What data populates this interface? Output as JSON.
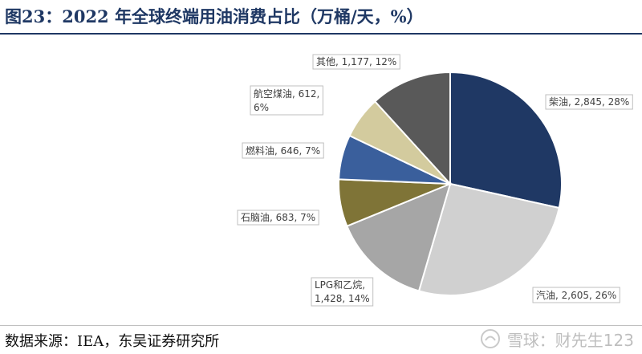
{
  "title": "图23：2022 年全球终端用油消费占比（万桶/天，%）",
  "source": "数据来源：IEA，东吴证券研究所",
  "watermark": {
    "text": "雪球：财先生123",
    "icon": "snowball-icon"
  },
  "chart_data": {
    "type": "pie",
    "title": "图23：2022 年全球终端用油消费占比（万桶/天，%）",
    "slices": [
      {
        "name": "柴油",
        "value": 2845,
        "percent": 28,
        "color": "#1f3864",
        "label_lines": [
          "柴油, 2,845, 28%"
        ]
      },
      {
        "name": "汽油",
        "value": 2605,
        "percent": 26,
        "color": "#d0d0d0",
        "label_lines": [
          "汽油, 2,605, 26%"
        ]
      },
      {
        "name": "LPG和乙烷",
        "value": 1428,
        "percent": 14,
        "color": "#a6a6a6",
        "label_lines": [
          "LPG和乙烷,",
          "1,428, 14%"
        ]
      },
      {
        "name": "石脑油",
        "value": 683,
        "percent": 7,
        "color": "#7f7437",
        "label_lines": [
          "石脑油, 683, 7%"
        ]
      },
      {
        "name": "燃料油",
        "value": 646,
        "percent": 7,
        "color": "#3a5f9c",
        "label_lines": [
          "燃料油, 646, 7%"
        ]
      },
      {
        "name": "航空煤油",
        "value": 612,
        "percent": 6,
        "color": "#d3cb9e",
        "label_lines": [
          "航空煤油, 612,",
          "6%"
        ]
      },
      {
        "name": "其他",
        "value": 1177,
        "percent": 12,
        "color": "#595959",
        "label_lines": [
          "其他, 1,177, 12%"
        ]
      }
    ],
    "start_angle_deg": 0,
    "direction": "clockwise",
    "legend": "none"
  }
}
